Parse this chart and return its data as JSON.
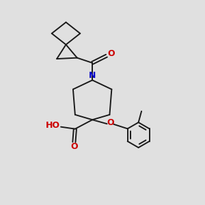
{
  "bg_color": "#e0e0e0",
  "line_color": "#1a1a1a",
  "N_color": "#0000cc",
  "O_color": "#cc0000",
  "lw": 1.4,
  "figsize": [
    3.0,
    3.0
  ],
  "dpi": 100,
  "xlim": [
    0,
    10
  ],
  "ylim": [
    0,
    10
  ]
}
